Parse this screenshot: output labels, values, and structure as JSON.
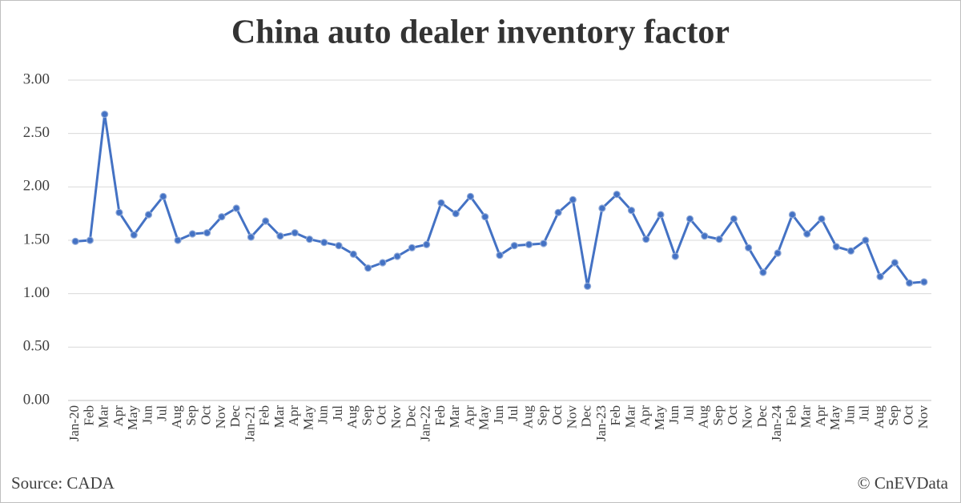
{
  "chart_data": {
    "type": "line",
    "title": "China auto dealer inventory factor",
    "source": "Source: CADA",
    "credit": "© CnEVData",
    "categories": [
      "Jan-20",
      "Feb",
      "Mar",
      "Apr",
      "May",
      "Jun",
      "Jul",
      "Aug",
      "Sep",
      "Oct",
      "Nov",
      "Dec",
      "Jan-21",
      "Feb",
      "Mar",
      "Apr",
      "May",
      "Jun",
      "Jul",
      "Aug",
      "Sep",
      "Oct",
      "Nov",
      "Dec",
      "Jan-22",
      "Feb",
      "Mar",
      "Apr",
      "May",
      "Jun",
      "Jul",
      "Aug",
      "Sep",
      "Oct",
      "Nov",
      "Dec",
      "Jan-23",
      "Feb",
      "Mar",
      "Apr",
      "May",
      "Jun",
      "Jul",
      "Aug",
      "Sep",
      "Oct",
      "Nov",
      "Dec",
      "Jan-24",
      "Feb",
      "Mar",
      "Apr",
      "May",
      "Jun",
      "Jul",
      "Aug",
      "Sep",
      "Oct",
      "Nov"
    ],
    "values": [
      1.49,
      1.5,
      2.68,
      1.76,
      1.55,
      1.74,
      1.91,
      1.5,
      1.56,
      1.57,
      1.72,
      1.8,
      1.53,
      1.68,
      1.54,
      1.57,
      1.51,
      1.48,
      1.45,
      1.37,
      1.24,
      1.29,
      1.35,
      1.43,
      1.46,
      1.85,
      1.75,
      1.91,
      1.72,
      1.36,
      1.45,
      1.46,
      1.47,
      1.76,
      1.88,
      1.07,
      1.8,
      1.93,
      1.78,
      1.51,
      1.74,
      1.35,
      1.7,
      1.54,
      1.51,
      1.7,
      1.43,
      1.2,
      1.38,
      1.74,
      1.56,
      1.7,
      1.44,
      1.4,
      1.5,
      1.16,
      1.29,
      1.1,
      1.11
    ],
    "color": "#4472c4",
    "ylim": [
      0,
      3
    ],
    "yticks": [
      {
        "value": 0,
        "label": "0.00"
      },
      {
        "value": 0.5,
        "label": "0.50"
      },
      {
        "value": 1,
        "label": "1.00"
      },
      {
        "value": 1.5,
        "label": "1.50"
      },
      {
        "value": 2,
        "label": "2.00"
      },
      {
        "value": 2.5,
        "label": "2.50"
      },
      {
        "value": 3,
        "label": "3.00"
      }
    ],
    "grid": true
  }
}
